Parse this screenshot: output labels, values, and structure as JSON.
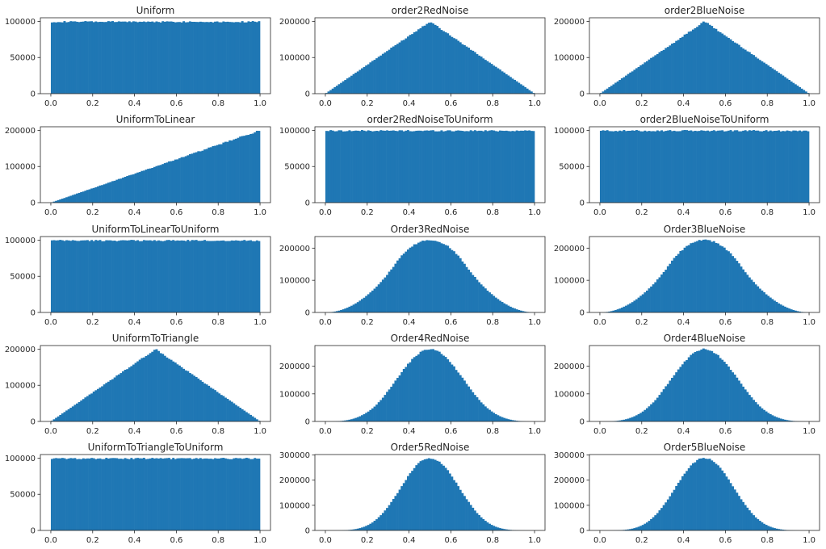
{
  "figure": {
    "bar_color": "#1f77b4",
    "axis_color": "#262626",
    "bins": 100
  },
  "chart_data": [
    {
      "type": "bar",
      "title": "Uniform",
      "shape": "uniform",
      "xlim": [
        0,
        1
      ],
      "ylim": [
        0,
        105000
      ],
      "xticks": [
        "0.0",
        "0.2",
        "0.4",
        "0.6",
        "0.8",
        "1.0"
      ],
      "yticks": [
        0,
        50000,
        100000
      ],
      "peak": 100000
    },
    {
      "type": "bar",
      "title": "order2RedNoise",
      "shape": "triangle",
      "xlim": [
        0,
        1
      ],
      "ylim": [
        0,
        210000
      ],
      "xticks": [
        "0.0",
        "0.2",
        "0.4",
        "0.6",
        "0.8",
        "1.0"
      ],
      "yticks": [
        0,
        100000,
        200000
      ],
      "peak": 200000
    },
    {
      "type": "bar",
      "title": "order2BlueNoise",
      "shape": "triangle",
      "xlim": [
        0,
        1
      ],
      "ylim": [
        0,
        210000
      ],
      "xticks": [
        "0.0",
        "0.2",
        "0.4",
        "0.6",
        "0.8",
        "1.0"
      ],
      "yticks": [
        0,
        100000,
        200000
      ],
      "peak": 200000
    },
    {
      "type": "bar",
      "title": "UniformToLinear",
      "shape": "linear",
      "xlim": [
        0,
        1
      ],
      "ylim": [
        0,
        210000
      ],
      "xticks": [
        "0.0",
        "0.2",
        "0.4",
        "0.6",
        "0.8",
        "1.0"
      ],
      "yticks": [
        0,
        100000,
        200000
      ],
      "peak": 200000
    },
    {
      "type": "bar",
      "title": "order2RedNoiseToUniform",
      "shape": "uniform",
      "xlim": [
        0,
        1
      ],
      "ylim": [
        0,
        105000
      ],
      "xticks": [
        "0.0",
        "0.2",
        "0.4",
        "0.6",
        "0.8",
        "1.0"
      ],
      "yticks": [
        0,
        50000,
        100000
      ],
      "peak": 100000
    },
    {
      "type": "bar",
      "title": "order2BlueNoiseToUniform",
      "shape": "uniform",
      "xlim": [
        0,
        1
      ],
      "ylim": [
        0,
        105000
      ],
      "xticks": [
        "0.0",
        "0.2",
        "0.4",
        "0.6",
        "0.8",
        "1.0"
      ],
      "yticks": [
        0,
        50000,
        100000
      ],
      "peak": 100000
    },
    {
      "type": "bar",
      "title": "UniformToLinearToUniform",
      "shape": "uniform",
      "xlim": [
        0,
        1
      ],
      "ylim": [
        0,
        105000
      ],
      "xticks": [
        "0.0",
        "0.2",
        "0.4",
        "0.6",
        "0.8",
        "1.0"
      ],
      "yticks": [
        0,
        50000,
        100000
      ],
      "peak": 100000
    },
    {
      "type": "bar",
      "title": "Order3RedNoise",
      "shape": "bates3",
      "xlim": [
        0,
        1
      ],
      "ylim": [
        0,
        236000
      ],
      "xticks": [
        "0.0",
        "0.2",
        "0.4",
        "0.6",
        "0.8",
        "1.0"
      ],
      "yticks": [
        0,
        100000,
        200000
      ],
      "peak": 225000
    },
    {
      "type": "bar",
      "title": "Order3BlueNoise",
      "shape": "bates3",
      "xlim": [
        0,
        1
      ],
      "ylim": [
        0,
        236000
      ],
      "xticks": [
        "0.0",
        "0.2",
        "0.4",
        "0.6",
        "0.8",
        "1.0"
      ],
      "yticks": [
        0,
        100000,
        200000
      ],
      "peak": 225000
    },
    {
      "type": "bar",
      "title": "UniformToTriangle",
      "shape": "triangle",
      "xlim": [
        0,
        1
      ],
      "ylim": [
        0,
        210000
      ],
      "xticks": [
        "0.0",
        "0.2",
        "0.4",
        "0.6",
        "0.8",
        "1.0"
      ],
      "yticks": [
        0,
        100000,
        200000
      ],
      "peak": 200000
    },
    {
      "type": "bar",
      "title": "Order4RedNoise",
      "shape": "bates4",
      "xlim": [
        0,
        1
      ],
      "ylim": [
        0,
        275000
      ],
      "xticks": [
        "0.0",
        "0.2",
        "0.4",
        "0.6",
        "0.8",
        "1.0"
      ],
      "yticks": [
        0,
        100000,
        200000
      ],
      "peak": 262000
    },
    {
      "type": "bar",
      "title": "Order4BlueNoise",
      "shape": "bates4",
      "xlim": [
        0,
        1
      ],
      "ylim": [
        0,
        275000
      ],
      "xticks": [
        "0.0",
        "0.2",
        "0.4",
        "0.6",
        "0.8",
        "1.0"
      ],
      "yticks": [
        0,
        100000,
        200000
      ],
      "peak": 262000
    },
    {
      "type": "bar",
      "title": "UniformToTriangleToUniform",
      "shape": "uniform",
      "xlim": [
        0,
        1
      ],
      "ylim": [
        0,
        105000
      ],
      "xticks": [
        "0.0",
        "0.2",
        "0.4",
        "0.6",
        "0.8",
        "1.0"
      ],
      "yticks": [
        0,
        50000,
        100000
      ],
      "peak": 100000
    },
    {
      "type": "bar",
      "title": "Order5RedNoise",
      "shape": "bates5",
      "xlim": [
        0,
        1
      ],
      "ylim": [
        0,
        302000
      ],
      "xticks": [
        "0.0",
        "0.2",
        "0.4",
        "0.6",
        "0.8",
        "1.0"
      ],
      "yticks": [
        0,
        100000,
        200000,
        300000
      ],
      "peak": 288000
    },
    {
      "type": "bar",
      "title": "Order5BlueNoise",
      "shape": "bates5",
      "xlim": [
        0,
        1
      ],
      "ylim": [
        0,
        302000
      ],
      "xticks": [
        "0.0",
        "0.2",
        "0.4",
        "0.6",
        "0.8",
        "1.0"
      ],
      "yticks": [
        0,
        100000,
        200000,
        300000
      ],
      "peak": 288000
    }
  ]
}
